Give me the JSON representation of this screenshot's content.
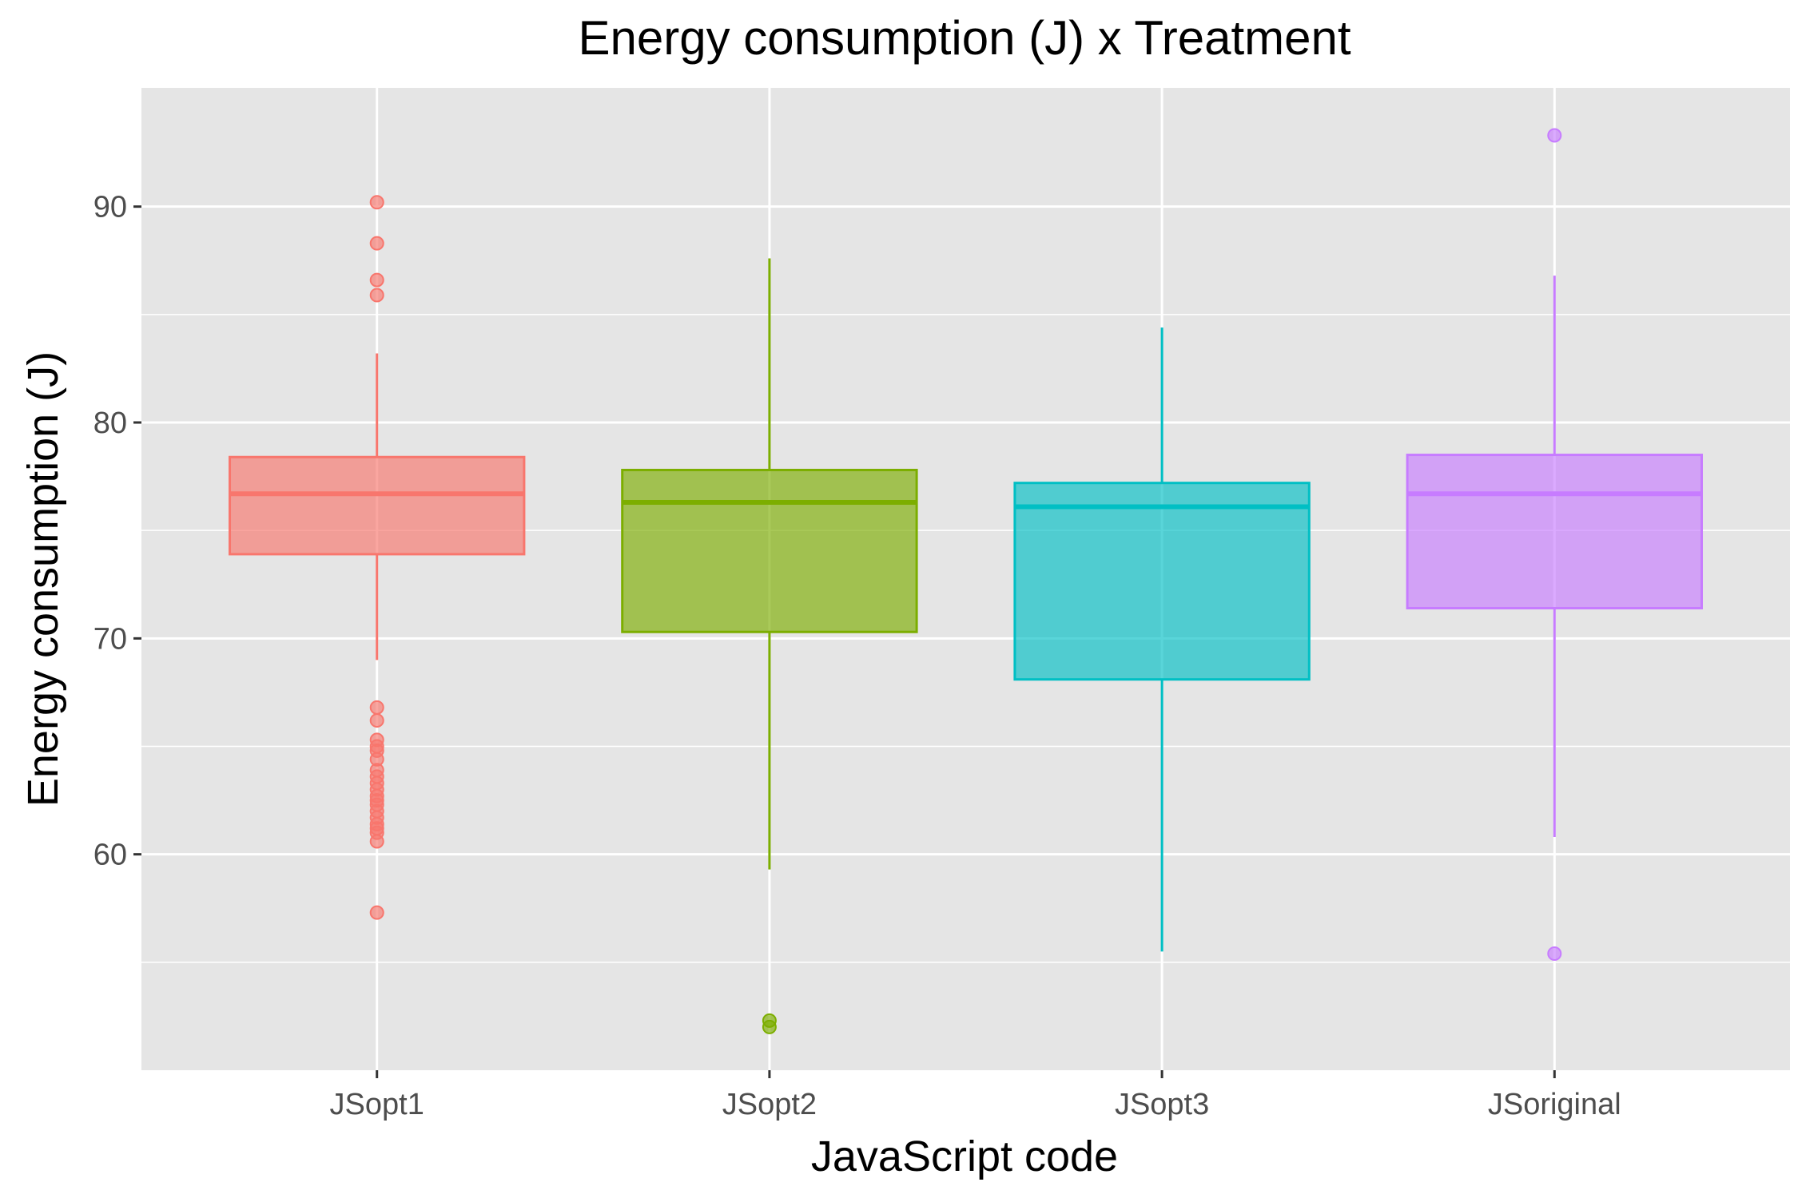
{
  "chart_data": {
    "type": "boxplot",
    "title": "Energy consumption (J) x Treatment",
    "xlabel": "JavaScript code",
    "ylabel": "Energy consumption (J)",
    "ylim": [
      50,
      95.5
    ],
    "y_ticks": [
      60,
      70,
      80,
      90
    ],
    "y_minor_ticks": [
      55,
      65,
      75,
      85
    ],
    "grid": true,
    "legend": "none",
    "background": "#e5e5e5",
    "categories": [
      "JSopt1",
      "JSopt2",
      "JSopt3",
      "JSoriginal"
    ],
    "series": [
      {
        "category": "JSopt1",
        "color": "#f8766d",
        "whisker_low": 69.0,
        "q1": 73.9,
        "median": 76.7,
        "q3": 78.4,
        "whisker_high": 83.2,
        "outliers": [
          90.2,
          88.3,
          86.6,
          85.9,
          66.8,
          66.2,
          65.3,
          65.0,
          64.8,
          64.4,
          63.9,
          63.6,
          63.3,
          63.0,
          62.7,
          62.5,
          62.3,
          62.0,
          61.7,
          61.4,
          61.2,
          61.0,
          60.6,
          57.3
        ]
      },
      {
        "category": "JSopt2",
        "color": "#7cae00",
        "whisker_low": 59.3,
        "q1": 70.3,
        "median": 76.3,
        "q3": 77.8,
        "whisker_high": 87.6,
        "outliers": [
          52.3,
          52.0
        ]
      },
      {
        "category": "JSopt3",
        "color": "#00bfc4",
        "whisker_low": 55.5,
        "q1": 68.1,
        "median": 76.1,
        "q3": 77.2,
        "whisker_high": 84.4,
        "outliers": []
      },
      {
        "category": "JSoriginal",
        "color": "#c77cff",
        "whisker_low": 60.8,
        "q1": 71.4,
        "median": 76.7,
        "q3": 78.5,
        "whisker_high": 86.8,
        "outliers": [
          93.3,
          55.4
        ]
      }
    ]
  }
}
